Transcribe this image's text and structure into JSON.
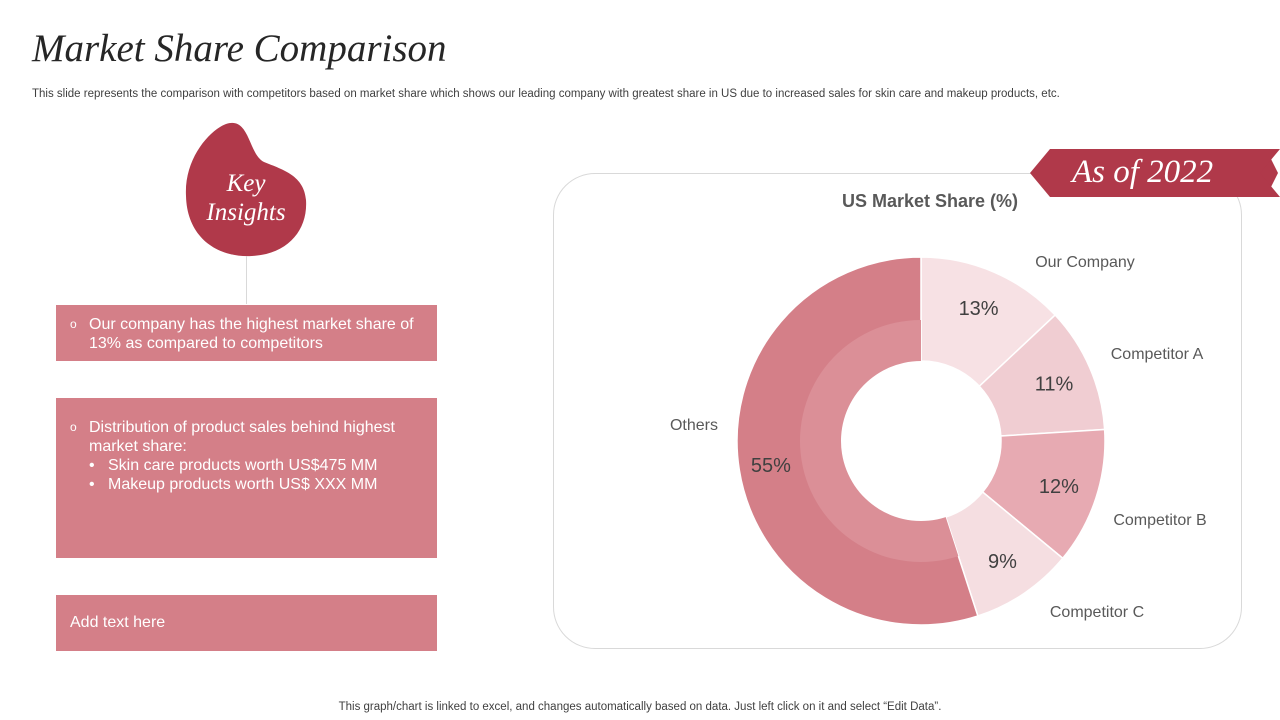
{
  "slide": {
    "title": "Market Share Comparison",
    "subtitle": "This slide represents the comparison with competitors based on market share which shows our leading company with greatest share in US due to increased sales for skin care and makeup products, etc.",
    "footer": "This graph/chart is linked to excel,  and changes automatically based on data. Just left click on it and select “Edit Data”."
  },
  "key_insights": {
    "line1": "Key",
    "line2": "Insights",
    "color": "#b0394a"
  },
  "boxes": {
    "box1": {
      "bullet": "o",
      "text": "Our company has the highest market share of 13% as compared to competitors"
    },
    "box2": {
      "bullet": "o",
      "text": "Distribution of product sales behind highest market share:",
      "subitems": [
        {
          "bullet": "•",
          "text": "Skin care products worth US$475 MM"
        },
        {
          "bullet": "•",
          "text": "Makeup products worth US$ XXX MM"
        }
      ]
    },
    "box3": {
      "text": "Add text here"
    },
    "color": "#d47f88"
  },
  "ribbon": {
    "text": "As of  2022",
    "color": "#b0394a"
  },
  "chart_data": {
    "type": "pie",
    "variant": "donut",
    "title": "US Market Share (%)",
    "categories": [
      "Our Company",
      "Competitor A",
      "Competitor B",
      "Competitor C",
      "Others"
    ],
    "values": [
      13,
      11,
      12,
      9,
      55
    ],
    "value_labels": [
      "13%",
      "11%",
      "12%",
      "9%",
      "55%"
    ],
    "colors": [
      "#f7e1e4",
      "#f0cdd2",
      "#e7aab2",
      "#f5dee1",
      "#d47f88"
    ],
    "start": "12 o'clock",
    "direction": "clockwise"
  }
}
